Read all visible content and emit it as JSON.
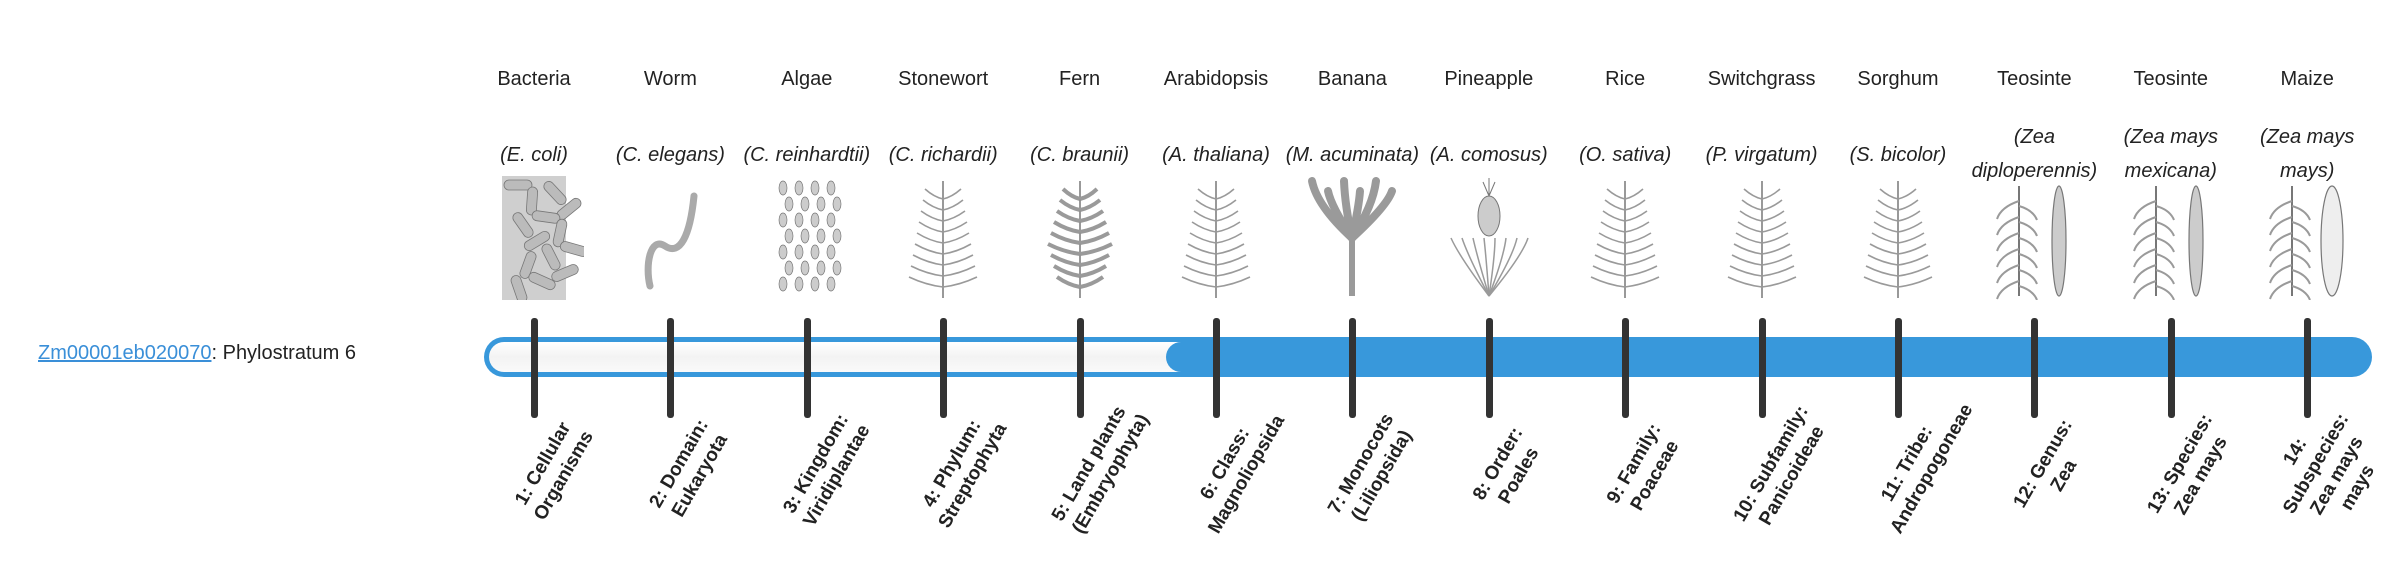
{
  "gene": {
    "id": "Zm00001eb020070",
    "suffix": ": Phylostratum 6",
    "phylostratum": 6
  },
  "colors": {
    "bar": "#3898db",
    "link": "#3a8fd8",
    "tick": "#333333"
  },
  "strata": [
    {
      "common": "Bacteria",
      "scientific": "(E. coli)",
      "label": "1: Cellular Organisms",
      "icon": "bacteria-icon"
    },
    {
      "common": "Worm",
      "scientific": "(C. elegans)",
      "label": "2: Domain: Eukaryota",
      "icon": "worm-icon"
    },
    {
      "common": "Algae",
      "scientific": "(C. reinhardtii)",
      "label": "3: Kingdom: Viridiplantae",
      "icon": "algae-icon"
    },
    {
      "common": "Stonewort",
      "scientific": "(C. richardii)",
      "label": "4: Phylum: Streptophyta",
      "icon": "stonewort-icon"
    },
    {
      "common": "Fern",
      "scientific": "(C. braunii)",
      "label": "5: Land plants (Embryophyta)",
      "icon": "fern-icon"
    },
    {
      "common": "Arabidopsis",
      "scientific": "(A. thaliana)",
      "label": "6: Class: Magnoliopsida",
      "icon": "arabidopsis-icon"
    },
    {
      "common": "Banana",
      "scientific": "(M. acuminata)",
      "label": "7: Monocots (Liliopsida)",
      "icon": "banana-icon"
    },
    {
      "common": "Pineapple",
      "scientific": "(A. comosus)",
      "label": "8: Order: Poales",
      "icon": "pineapple-icon"
    },
    {
      "common": "Rice",
      "scientific": "(O. sativa)",
      "label": "9: Family: Poaceae",
      "icon": "rice-icon"
    },
    {
      "common": "Switchgrass",
      "scientific": "(P. virgatum)",
      "label": "10: Subfamily: Panicoideae",
      "icon": "switchgrass-icon"
    },
    {
      "common": "Sorghum",
      "scientific": "(S. bicolor)",
      "label": "11: Tribe: Andropogoneae",
      "icon": "sorghum-icon"
    },
    {
      "common": "Teosinte",
      "scientific": "(Zea diploperennis)",
      "label": "12: Genus: Zea",
      "icon": "teosinte-icon"
    },
    {
      "common": "Teosinte",
      "scientific": "(Zea mays mexicana)",
      "label": "13: Species: Zea mays",
      "icon": "teosinte-mexicana-icon"
    },
    {
      "common": "Maize",
      "scientific": "(Zea mays mays)",
      "label": "14: Subspecies: Zea mays mays",
      "icon": "maize-icon"
    }
  ]
}
